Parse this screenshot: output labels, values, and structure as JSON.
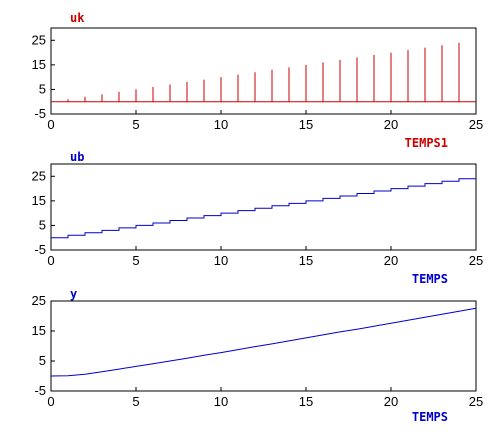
{
  "chart_data": [
    {
      "type": "line",
      "plot_style": "stem",
      "title": "uk",
      "xlabel": "TEMPS1",
      "ylabel": "",
      "xlim": [
        0,
        25
      ],
      "ylim": [
        -5,
        30
      ],
      "xticks": [
        "0",
        "5",
        "10",
        "15",
        "20",
        "25"
      ],
      "yticks": [
        "-5",
        "5",
        "15",
        "25"
      ],
      "color": "#cc0000",
      "grid": false,
      "series": [
        {
          "x": [
            1,
            2,
            3,
            4,
            5,
            6,
            7,
            8,
            9,
            10,
            11,
            12,
            13,
            14,
            15,
            16,
            17,
            18,
            19,
            20,
            21,
            22,
            23,
            24
          ],
          "values": [
            1,
            2,
            3,
            4,
            5,
            6,
            7,
            8,
            9,
            10,
            11,
            12,
            13,
            14,
            15,
            16,
            17,
            18,
            19,
            20,
            21,
            22,
            23,
            24
          ]
        }
      ]
    },
    {
      "type": "line",
      "plot_style": "step",
      "title": "ub",
      "xlabel": "TEMPS",
      "ylabel": "",
      "xlim": [
        0,
        25
      ],
      "ylim": [
        -5,
        30
      ],
      "xticks": [
        "0",
        "5",
        "10",
        "15",
        "20",
        "25"
      ],
      "yticks": [
        "-5",
        "5",
        "15",
        "25"
      ],
      "color": "#0000cc",
      "grid": false,
      "series": [
        {
          "x": [
            0,
            1,
            2,
            3,
            4,
            5,
            6,
            7,
            8,
            9,
            10,
            11,
            12,
            13,
            14,
            15,
            16,
            17,
            18,
            19,
            20,
            21,
            22,
            23,
            24
          ],
          "values": [
            0,
            1,
            2,
            3,
            4,
            5,
            6,
            7,
            8,
            9,
            10,
            11,
            12,
            13,
            14,
            15,
            16,
            17,
            18,
            19,
            20,
            21,
            22,
            23,
            24
          ]
        }
      ]
    },
    {
      "type": "line",
      "plot_style": "line",
      "title": "y",
      "xlabel": "TEMPS",
      "ylabel": "",
      "xlim": [
        0,
        25
      ],
      "ylim": [
        -5,
        25
      ],
      "xticks": [
        "0",
        "5",
        "10",
        "15",
        "20",
        "25"
      ],
      "yticks": [
        "-5",
        "5",
        "15",
        "25"
      ],
      "color": "#0000cc",
      "grid": false,
      "series": [
        {
          "x": [
            0,
            1,
            2,
            3,
            4,
            5,
            6,
            7,
            8,
            9,
            10,
            11,
            12,
            13,
            14,
            15,
            16,
            17,
            18,
            19,
            20,
            21,
            22,
            23,
            24,
            25
          ],
          "values": [
            0,
            0.1,
            0.6,
            1.4,
            2.3,
            3.2,
            4.1,
            5.0,
            5.9,
            6.9,
            7.8,
            8.8,
            9.8,
            10.7,
            11.7,
            12.7,
            13.7,
            14.7,
            15.6,
            16.6,
            17.6,
            18.6,
            19.6,
            20.6,
            21.6,
            22.6
          ]
        }
      ]
    }
  ]
}
